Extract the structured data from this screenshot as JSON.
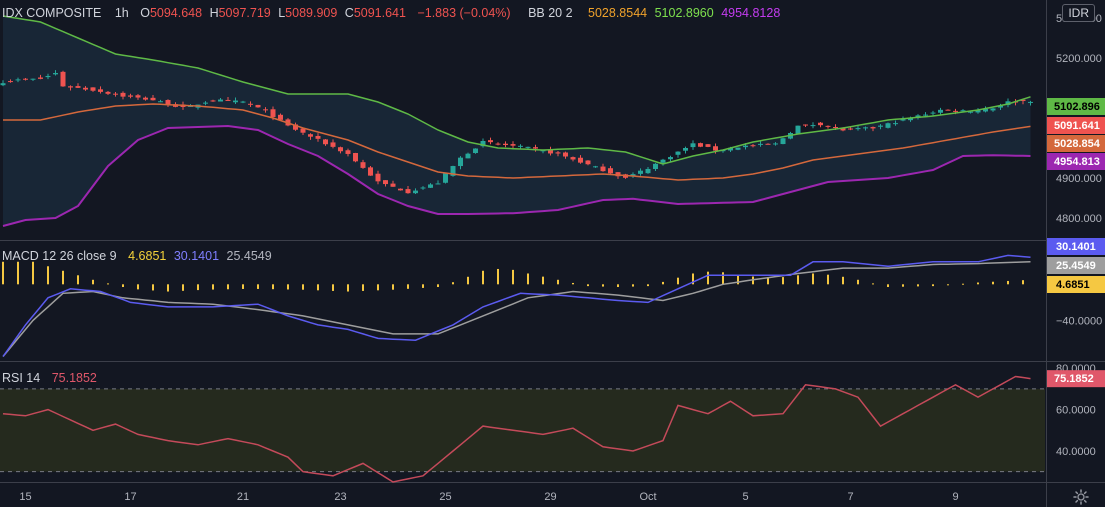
{
  "header": {
    "symbol": "IDX COMPOSITE",
    "interval": "1h",
    "open_key": "O",
    "open": "5094.648",
    "high_key": "H",
    "high": "5097.719",
    "low_key": "L",
    "low": "5089.909",
    "close_key": "C",
    "close": "5091.641",
    "change": "−1.883 (−0.04%)",
    "bb_label": "BB 20 2",
    "bb_mid": "5028.8544",
    "bb_upper": "5102.8960",
    "bb_lower": "4954.8128",
    "currency": "IDR"
  },
  "macd_legend": {
    "label": "MACD 12 26 close 9",
    "histogram": "4.6851",
    "macd": "30.1401",
    "signal": "25.4549"
  },
  "rsi_legend": {
    "label": "RSI 14",
    "value": "75.1852"
  },
  "colors": {
    "background": "#131722",
    "up": "#26a69a",
    "down": "#ef5350",
    "bb_upper": "#5fb946",
    "bb_mid": "#d4683c",
    "bb_lower": "#9c27b0",
    "macd": "#5b5bf0",
    "signal": "#9e9e9e",
    "histogram": "#f5c842",
    "rsi": "#c44a5a"
  },
  "chart_data": [
    {
      "type": "candlestick",
      "title": "IDX COMPOSITE",
      "interval": "1h",
      "ylim": [
        4745,
        5345
      ],
      "yticks": [
        4800,
        4900,
        5000,
        5100,
        5200,
        5300
      ],
      "ytick_labels": [
        "4800.000",
        "4900.000",
        "",
        "",
        "5200.000",
        "5300.000"
      ],
      "xticks": [
        "15",
        "17",
        "21",
        "23",
        "25",
        "29",
        "Oct",
        "5",
        "7",
        "9"
      ],
      "xtick_positions": [
        3,
        17,
        32,
        45,
        59,
        73,
        86,
        99,
        113,
        127
      ],
      "n_points": 138,
      "price_anchors": [
        [
          0,
          5140
        ],
        [
          2,
          5145
        ],
        [
          5,
          5148
        ],
        [
          7,
          5162
        ],
        [
          8,
          5130
        ],
        [
          12,
          5120
        ],
        [
          16,
          5105
        ],
        [
          20,
          5095
        ],
        [
          24,
          5075
        ],
        [
          28,
          5095
        ],
        [
          32,
          5090
        ],
        [
          35,
          5068
        ],
        [
          38,
          5030
        ],
        [
          42,
          4995
        ],
        [
          46,
          4960
        ],
        [
          50,
          4890
        ],
        [
          54,
          4865
        ],
        [
          58,
          4888
        ],
        [
          61,
          4950
        ],
        [
          64,
          4990
        ],
        [
          66,
          4985
        ],
        [
          70,
          4975
        ],
        [
          74,
          4960
        ],
        [
          77,
          4940
        ],
        [
          80,
          4920
        ],
        [
          83,
          4900
        ],
        [
          86,
          4925
        ],
        [
          89,
          4955
        ],
        [
          92,
          4985
        ],
        [
          95,
          4970
        ],
        [
          99,
          4980
        ],
        [
          103,
          4985
        ],
        [
          106,
          5030
        ],
        [
          109,
          5035
        ],
        [
          112,
          5020
        ],
        [
          116,
          5025
        ],
        [
          118,
          5035
        ],
        [
          121,
          5050
        ],
        [
          125,
          5070
        ],
        [
          129,
          5068
        ],
        [
          132,
          5075
        ],
        [
          134,
          5090
        ],
        [
          137,
          5093
        ]
      ],
      "bb_upper_anchors": [
        [
          0,
          5305
        ],
        [
          5,
          5290
        ],
        [
          10,
          5250
        ],
        [
          15,
          5210
        ],
        [
          20,
          5195
        ],
        [
          26,
          5175
        ],
        [
          32,
          5140
        ],
        [
          38,
          5110
        ],
        [
          46,
          5110
        ],
        [
          50,
          5090
        ],
        [
          54,
          5060
        ],
        [
          58,
          5020
        ],
        [
          62,
          4990
        ],
        [
          66,
          4975
        ],
        [
          72,
          4970
        ],
        [
          78,
          4975
        ],
        [
          83,
          4965
        ],
        [
          88,
          4935
        ],
        [
          92,
          4955
        ],
        [
          96,
          4970
        ],
        [
          100,
          4990
        ],
        [
          106,
          5010
        ],
        [
          112,
          5025
        ],
        [
          118,
          5045
        ],
        [
          124,
          5055
        ],
        [
          130,
          5070
        ],
        [
          134,
          5085
        ],
        [
          137,
          5103
        ]
      ],
      "bb_mid_anchors": [
        [
          0,
          5045
        ],
        [
          5,
          5045
        ],
        [
          10,
          5065
        ],
        [
          15,
          5080
        ],
        [
          20,
          5085
        ],
        [
          26,
          5080
        ],
        [
          32,
          5070
        ],
        [
          36,
          5050
        ],
        [
          40,
          5025
        ],
        [
          46,
          4995
        ],
        [
          50,
          4965
        ],
        [
          54,
          4940
        ],
        [
          58,
          4915
        ],
        [
          62,
          4905
        ],
        [
          68,
          4900
        ],
        [
          74,
          4905
        ],
        [
          80,
          4910
        ],
        [
          84,
          4905
        ],
        [
          90,
          4895
        ],
        [
          96,
          4900
        ],
        [
          100,
          4910
        ],
        [
          104,
          4925
        ],
        [
          108,
          4945
        ],
        [
          114,
          4960
        ],
        [
          120,
          4975
        ],
        [
          126,
          4995
        ],
        [
          132,
          5015
        ],
        [
          137,
          5029
        ]
      ],
      "bb_lower_anchors": [
        [
          0,
          4780
        ],
        [
          3,
          4795
        ],
        [
          7,
          4800
        ],
        [
          10,
          4830
        ],
        [
          14,
          4930
        ],
        [
          18,
          4995
        ],
        [
          22,
          5025
        ],
        [
          30,
          5030
        ],
        [
          34,
          5020
        ],
        [
          38,
          4985
        ],
        [
          42,
          4955
        ],
        [
          46,
          4910
        ],
        [
          50,
          4860
        ],
        [
          54,
          4830
        ],
        [
          58,
          4810
        ],
        [
          62,
          4810
        ],
        [
          68,
          4812
        ],
        [
          74,
          4820
        ],
        [
          80,
          4845
        ],
        [
          84,
          4848
        ],
        [
          90,
          4835
        ],
        [
          100,
          4840
        ],
        [
          104,
          4860
        ],
        [
          110,
          4890
        ],
        [
          118,
          4900
        ],
        [
          124,
          4920
        ],
        [
          128,
          4955
        ],
        [
          132,
          4957
        ],
        [
          137,
          4955
        ]
      ],
      "last_price_tags": [
        {
          "series": "bb_upper",
          "value": 5102.896,
          "label": "5102.896"
        },
        {
          "series": "close",
          "value": 5091.641,
          "label": "5091.641"
        },
        {
          "series": "bb_mid",
          "value": 5028.854,
          "label": "5028.854"
        },
        {
          "series": "bb_lower",
          "value": 4954.813,
          "label": "4954.813"
        }
      ]
    },
    {
      "type": "line",
      "title": "MACD 12 26 close 9",
      "ylim": [
        -85,
        48
      ],
      "yticks": [
        -40
      ],
      "ytick_labels": [
        "−40.0000"
      ],
      "macd_anchors": [
        [
          0,
          -80
        ],
        [
          3,
          -45
        ],
        [
          6,
          -15
        ],
        [
          9,
          -5
        ],
        [
          13,
          -8
        ],
        [
          17,
          -20
        ],
        [
          22,
          -25
        ],
        [
          28,
          -25
        ],
        [
          34,
          -22
        ],
        [
          38,
          -35
        ],
        [
          42,
          -45
        ],
        [
          46,
          -50
        ],
        [
          50,
          -60
        ],
        [
          55,
          -62
        ],
        [
          60,
          -45
        ],
        [
          64,
          -25
        ],
        [
          69,
          -10
        ],
        [
          74,
          -12
        ],
        [
          78,
          -15
        ],
        [
          82,
          -18
        ],
        [
          86,
          -20
        ],
        [
          90,
          -5
        ],
        [
          94,
          10
        ],
        [
          100,
          10
        ],
        [
          105,
          10
        ],
        [
          108,
          25
        ],
        [
          112,
          25
        ],
        [
          118,
          20
        ],
        [
          124,
          25
        ],
        [
          130,
          25
        ],
        [
          134,
          32
        ],
        [
          137,
          30
        ]
      ],
      "signal_anchors": [
        [
          0,
          -80
        ],
        [
          4,
          -40
        ],
        [
          8,
          -10
        ],
        [
          12,
          -8
        ],
        [
          16,
          -15
        ],
        [
          22,
          -20
        ],
        [
          28,
          -22
        ],
        [
          34,
          -28
        ],
        [
          40,
          -35
        ],
        [
          46,
          -45
        ],
        [
          52,
          -55
        ],
        [
          58,
          -55
        ],
        [
          64,
          -35
        ],
        [
          70,
          -15
        ],
        [
          76,
          -8
        ],
        [
          82,
          -12
        ],
        [
          88,
          -18
        ],
        [
          92,
          -10
        ],
        [
          96,
          0
        ],
        [
          100,
          5
        ],
        [
          106,
          12
        ],
        [
          112,
          18
        ],
        [
          118,
          18
        ],
        [
          124,
          22
        ],
        [
          130,
          23
        ],
        [
          137,
          25
        ]
      ],
      "histogram_anchors": [
        [
          0,
          25
        ],
        [
          4,
          25
        ],
        [
          8,
          15
        ],
        [
          12,
          5
        ],
        [
          17,
          -5
        ],
        [
          22,
          -8
        ],
        [
          27,
          -6
        ],
        [
          33,
          -5
        ],
        [
          40,
          -6
        ],
        [
          46,
          -8
        ],
        [
          52,
          -6
        ],
        [
          58,
          -3
        ],
        [
          61,
          5
        ],
        [
          64,
          15
        ],
        [
          67,
          18
        ],
        [
          70,
          12
        ],
        [
          74,
          5
        ],
        [
          78,
          -2
        ],
        [
          82,
          -3
        ],
        [
          86,
          -2
        ],
        [
          89,
          5
        ],
        [
          92,
          12
        ],
        [
          95,
          15
        ],
        [
          98,
          10
        ],
        [
          101,
          8
        ],
        [
          104,
          8
        ],
        [
          108,
          12
        ],
        [
          111,
          10
        ],
        [
          114,
          5
        ],
        [
          118,
          -3
        ],
        [
          124,
          -2
        ],
        [
          130,
          2
        ],
        [
          137,
          5
        ]
      ],
      "last_value_tags": [
        {
          "series": "macd",
          "value": 30.1401,
          "label": "30.1401"
        },
        {
          "series": "signal",
          "value": 25.4549,
          "label": "25.4549"
        },
        {
          "series": "histogram",
          "value": 4.6851,
          "label": "4.6851"
        }
      ]
    },
    {
      "type": "line",
      "title": "RSI 14",
      "ylim": [
        25,
        83
      ],
      "yticks": [
        40,
        60,
        80
      ],
      "ytick_labels": [
        "40.0000",
        "60.0000",
        "80.0000"
      ],
      "bands": [
        30,
        70
      ],
      "rsi_anchors": [
        [
          0,
          58
        ],
        [
          3,
          57
        ],
        [
          6,
          60
        ],
        [
          9,
          55
        ],
        [
          12,
          50
        ],
        [
          15,
          53
        ],
        [
          18,
          48
        ],
        [
          22,
          45
        ],
        [
          26,
          43
        ],
        [
          30,
          46
        ],
        [
          34,
          43
        ],
        [
          38,
          37
        ],
        [
          40,
          30
        ],
        [
          44,
          28
        ],
        [
          48,
          34
        ],
        [
          52,
          25
        ],
        [
          56,
          28
        ],
        [
          60,
          40
        ],
        [
          64,
          52
        ],
        [
          68,
          50
        ],
        [
          72,
          48
        ],
        [
          76,
          51
        ],
        [
          80,
          42
        ],
        [
          84,
          40
        ],
        [
          88,
          45
        ],
        [
          90,
          62
        ],
        [
          94,
          58
        ],
        [
          97,
          64
        ],
        [
          100,
          57
        ],
        [
          104,
          58
        ],
        [
          107,
          72
        ],
        [
          111,
          70
        ],
        [
          114,
          66
        ],
        [
          117,
          52
        ],
        [
          120,
          58
        ],
        [
          124,
          66
        ],
        [
          127,
          72
        ],
        [
          130,
          66
        ],
        [
          133,
          72
        ],
        [
          135,
          76
        ],
        [
          137,
          75
        ]
      ],
      "last_value_tags": [
        {
          "series": "rsi",
          "value": 75.1852,
          "label": "75.1852"
        }
      ]
    }
  ]
}
